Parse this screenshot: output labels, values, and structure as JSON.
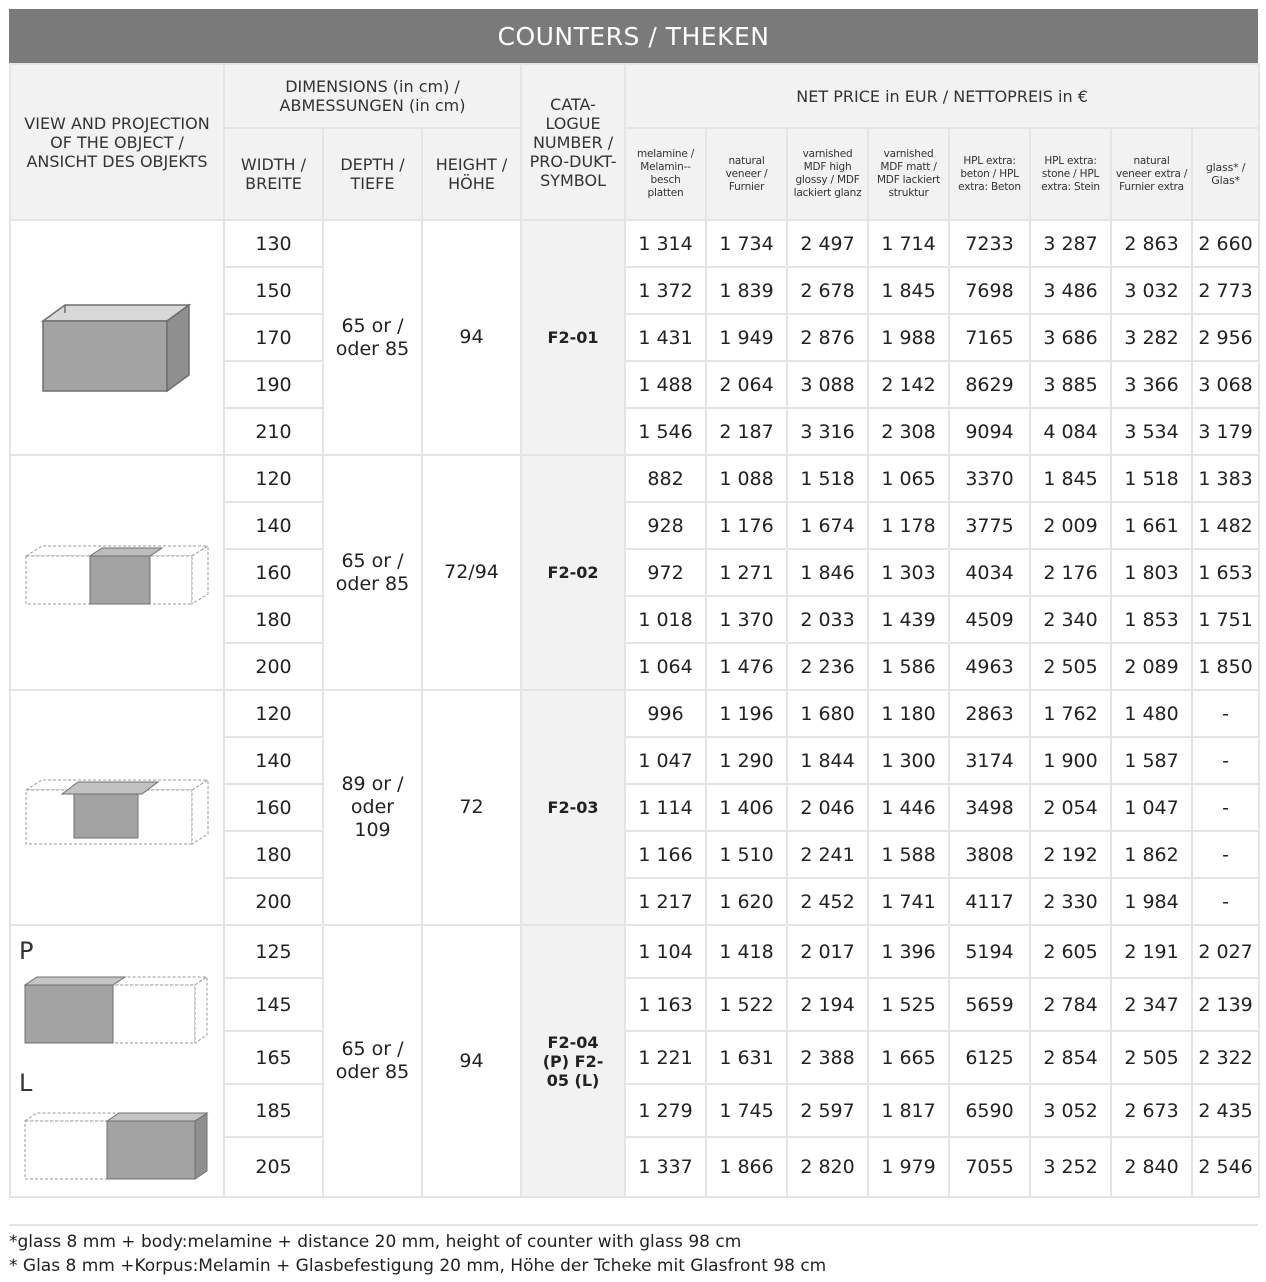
{
  "title": "COUNTERS / THEKEN",
  "headers": {
    "view": "VIEW AND PROJECTION OF THE OBJECT / ANSICHT DES OBJEKTS",
    "dimensions": "DIMENSIONS (in cm) / ABMESSUNGEN (in cm)",
    "width": "WIDTH / BREITE",
    "depth": "DEPTH / TIEFE",
    "height": "HEIGHT / HÖHE",
    "catalogue": "CATA-LOGUE NUMBER / PRO-DUKT-SYMBOL",
    "net_price": "NET PRICE in EUR / NETTOPREIS in €",
    "finishes": [
      "melamine / Melamin--besch platten",
      "natural veneer / Furnier",
      "varnished MDF high glossy / MDF lackiert glanz",
      "varnished MDF matt / MDF lackiert struktur",
      "HPL extra: beton / HPL extra: Beton",
      "HPL extra: stone / HPL extra: Stein",
      "natural veneer extra / Furnier extra",
      "glass* / Glas*"
    ]
  },
  "groups": [
    {
      "depth": "65 or / oder 85",
      "height": "94",
      "catalogue": "F2-01",
      "icon": "counter-f2-01-icon",
      "rows": [
        {
          "width": "130",
          "prices": [
            "1 314",
            "1 734",
            "2 497",
            "1 714",
            "7233",
            "3 287",
            "2 863",
            "2 660"
          ]
        },
        {
          "width": "150",
          "prices": [
            "1 372",
            "1 839",
            "2 678",
            "1 845",
            "7698",
            "3 486",
            "3 032",
            "2 773"
          ]
        },
        {
          "width": "170",
          "prices": [
            "1 431",
            "1 949",
            "2 876",
            "1 988",
            "7165",
            "3 686",
            "3 282",
            "2 956"
          ]
        },
        {
          "width": "190",
          "prices": [
            "1 488",
            "2 064",
            "3 088",
            "2 142",
            "8629",
            "3 885",
            "3 366",
            "3 068"
          ]
        },
        {
          "width": "210",
          "prices": [
            "1 546",
            "2 187",
            "3 316",
            "2 308",
            "9094",
            "4 084",
            "3 534",
            "3 179"
          ]
        }
      ]
    },
    {
      "depth": "65 or / oder 85",
      "height": "72/94",
      "catalogue": "F2-02",
      "icon": "counter-f2-02-icon",
      "rows": [
        {
          "width": "120",
          "prices": [
            "882",
            "1 088",
            "1 518",
            "1 065",
            "3370",
            "1 845",
            "1 518",
            "1 383"
          ]
        },
        {
          "width": "140",
          "prices": [
            "928",
            "1 176",
            "1 674",
            "1 178",
            "3775",
            "2 009",
            "1 661",
            "1 482"
          ]
        },
        {
          "width": "160",
          "prices": [
            "972",
            "1 271",
            "1 846",
            "1 303",
            "4034",
            "2 176",
            "1 803",
            "1 653"
          ]
        },
        {
          "width": "180",
          "prices": [
            "1 018",
            "1 370",
            "2 033",
            "1 439",
            "4509",
            "2 340",
            "1 853",
            "1 751"
          ]
        },
        {
          "width": "200",
          "prices": [
            "1 064",
            "1 476",
            "2 236",
            "1 586",
            "4963",
            "2 505",
            "2 089",
            "1 850"
          ]
        }
      ]
    },
    {
      "depth": "89 or / oder 109",
      "height": "72",
      "catalogue": "F2-03",
      "icon": "counter-f2-03-icon",
      "rows": [
        {
          "width": "120",
          "prices": [
            "996",
            "1 196",
            "1 680",
            "1 180",
            "2863",
            "1 762",
            "1 480",
            "-"
          ]
        },
        {
          "width": "140",
          "prices": [
            "1 047",
            "1 290",
            "1 844",
            "1 300",
            "3174",
            "1 900",
            "1 587",
            "-"
          ]
        },
        {
          "width": "160",
          "prices": [
            "1 114",
            "1 406",
            "2 046",
            "1 446",
            "3498",
            "2 054",
            "1 047",
            "-"
          ]
        },
        {
          "width": "180",
          "prices": [
            "1 166",
            "1 510",
            "2 241",
            "1 588",
            "3808",
            "2 192",
            "1 862",
            "-"
          ]
        },
        {
          "width": "200",
          "prices": [
            "1 217",
            "1 620",
            "2 452",
            "1 741",
            "4117",
            "2 330",
            "1 984",
            "-"
          ]
        }
      ]
    },
    {
      "depth": "65 or / oder 85",
      "height": "94",
      "catalogue": "F2-04 (P) F2-05 (L)",
      "icon": "counter-f2-04-05-icon",
      "label_p": "P",
      "label_l": "L",
      "rows": [
        {
          "width": "125",
          "prices": [
            "1 104",
            "1 418",
            "2 017",
            "1 396",
            "5194",
            "2 605",
            "2 191",
            "2 027"
          ]
        },
        {
          "width": "145",
          "prices": [
            "1 163",
            "1 522",
            "2 194",
            "1 525",
            "5659",
            "2 784",
            "2 347",
            "2 139"
          ]
        },
        {
          "width": "165",
          "prices": [
            "1 221",
            "1 631",
            "2 388",
            "1 665",
            "6125",
            "2 854",
            "2 505",
            "2 322"
          ]
        },
        {
          "width": "185",
          "prices": [
            "1 279",
            "1 745",
            "2 597",
            "1 817",
            "6590",
            "3 052",
            "2 673",
            "2 435"
          ]
        },
        {
          "width": "205",
          "prices": [
            "1 337",
            "1 866",
            "2 820",
            "1 979",
            "7055",
            "3 252",
            "2 840",
            "2 546"
          ]
        }
      ]
    }
  ],
  "footnotes": [
    "*glass 8 mm + body:melamine + distance 20 mm, height of counter with glass 98 cm",
    "* Glas 8 mm +Korpus:Melamin + Glasbefestigung 20 mm, Höhe der Tcheke mit Glasfront 98 cm"
  ]
}
